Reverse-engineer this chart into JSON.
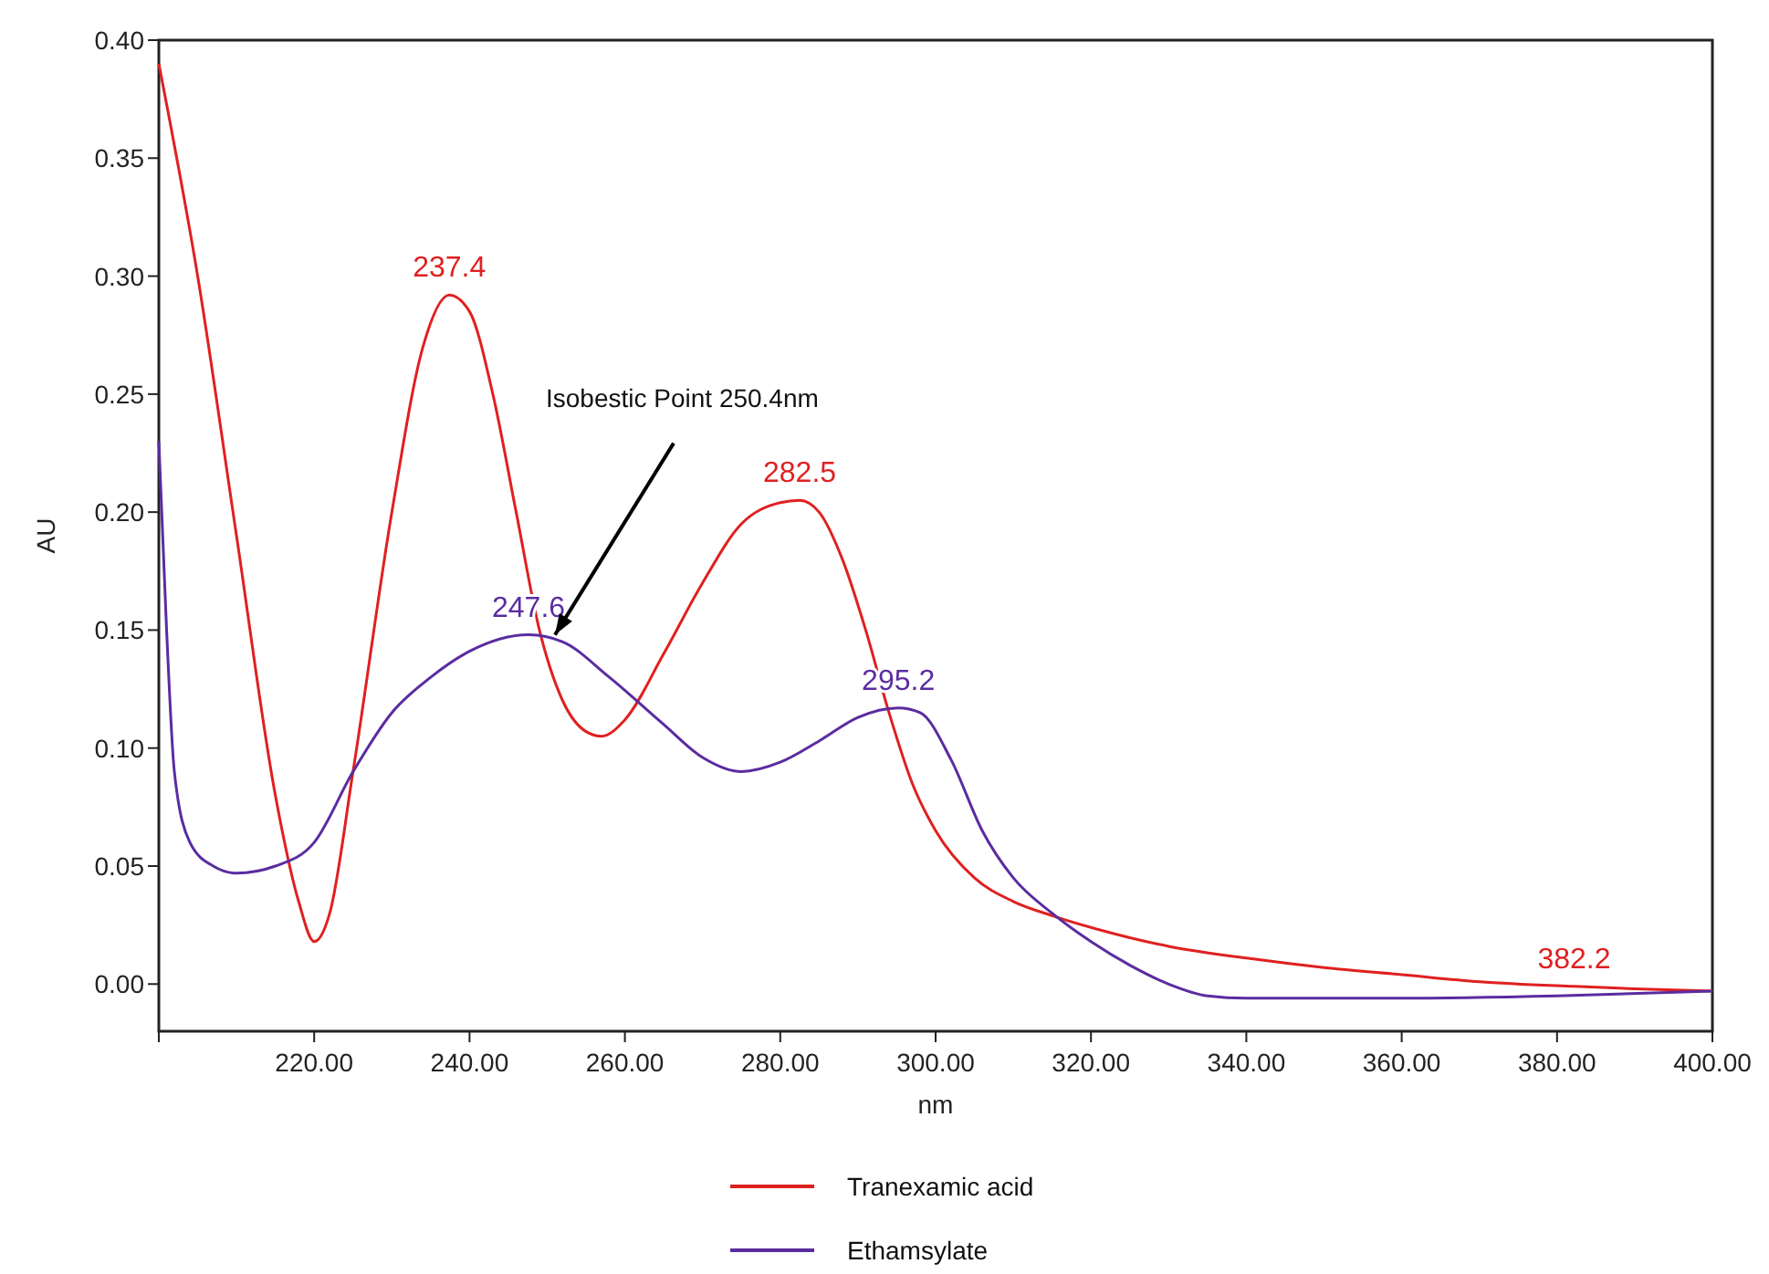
{
  "chart_data": {
    "type": "line",
    "xlabel": "nm",
    "ylabel": "AU",
    "xlim": [
      200,
      400
    ],
    "ylim": [
      -0.02,
      0.4
    ],
    "xticks": [
      {
        "value": 200,
        "label": null
      },
      {
        "value": 220,
        "label": "220.00"
      },
      {
        "value": 240,
        "label": "240.00"
      },
      {
        "value": 260,
        "label": "260.00"
      },
      {
        "value": 280,
        "label": "280.00"
      },
      {
        "value": 300,
        "label": "300.00"
      },
      {
        "value": 320,
        "label": "320.00"
      },
      {
        "value": 340,
        "label": "340.00"
      },
      {
        "value": 360,
        "label": "360.00"
      },
      {
        "value": 380,
        "label": "380.00"
      },
      {
        "value": 400,
        "label": "400.00"
      }
    ],
    "yticks": [
      {
        "value": 0,
        "label": "0.00"
      },
      {
        "value": 0.05,
        "label": "0.05"
      },
      {
        "value": 0.1,
        "label": "0.10"
      },
      {
        "value": 0.15,
        "label": "0.15"
      },
      {
        "value": 0.2,
        "label": "0.20"
      },
      {
        "value": 0.25,
        "label": "0.25"
      },
      {
        "value": 0.3,
        "label": "0.30"
      },
      {
        "value": 0.35,
        "label": "0.35"
      },
      {
        "value": 0.4,
        "label": "0.40"
      }
    ],
    "grid": false,
    "legend": "bottom",
    "marker": "none",
    "line_style": "solid",
    "series": [
      {
        "name": "Tranexamic acid",
        "color": "#e02020",
        "x": [
          200,
          205,
          210,
          215,
          218,
          220,
          222,
          225,
          230,
          234,
          237.4,
          240,
          243,
          246,
          249,
          252,
          255,
          257,
          260,
          265,
          270,
          275,
          280,
          282.5,
          285,
          288,
          291,
          294,
          297,
          300,
          305,
          310,
          315,
          320,
          330,
          340,
          350,
          360,
          370,
          382.2,
          390,
          400
        ],
        "values": [
          0.39,
          0.3,
          0.19,
          0.08,
          0.035,
          0.018,
          0.03,
          0.09,
          0.2,
          0.27,
          0.292,
          0.285,
          0.25,
          0.2,
          0.15,
          0.12,
          0.107,
          0.105,
          0.112,
          0.14,
          0.17,
          0.195,
          0.204,
          0.205,
          0.2,
          0.18,
          0.15,
          0.115,
          0.085,
          0.065,
          0.045,
          0.035,
          0.029,
          0.024,
          0.016,
          0.011,
          0.007,
          0.004,
          0.001,
          -0.001,
          -0.002,
          -0.003
        ]
      },
      {
        "name": "Ethamsylate",
        "color": "#5a2ca0",
        "x": [
          200,
          201,
          202,
          204,
          207,
          210,
          215,
          220,
          225,
          230,
          235,
          240,
          247.6,
          252,
          258,
          265,
          270,
          275,
          280,
          285,
          290,
          295.2,
          298,
          302,
          306,
          310,
          315,
          320,
          325,
          330,
          335,
          340,
          360,
          380,
          400
        ],
        "values": [
          0.23,
          0.15,
          0.09,
          0.06,
          0.05,
          0.047,
          0.05,
          0.06,
          0.09,
          0.115,
          0.13,
          0.141,
          0.148,
          0.145,
          0.13,
          0.11,
          0.096,
          0.09,
          0.094,
          0.103,
          0.113,
          0.117,
          0.115,
          0.095,
          0.065,
          0.045,
          0.03,
          0.018,
          0.008,
          0,
          -0.005,
          -0.006,
          -0.006,
          -0.005,
          -0.003
        ]
      }
    ],
    "annotations": [
      {
        "text": "237.4",
        "x": 237.4,
        "y": 0.292
      },
      {
        "text": "282.5",
        "x": 282.5,
        "y": 0.205
      },
      {
        "text": "382.2",
        "x": 382.2,
        "y": -0.001
      },
      {
        "text": "247.6",
        "x": 247.6,
        "y": 0.148
      },
      {
        "text": "295.2",
        "x": 295.2,
        "y": 0.117
      },
      {
        "text": "Isobestic Point 250.4nm",
        "x": 251,
        "y": 0.148
      }
    ]
  }
}
